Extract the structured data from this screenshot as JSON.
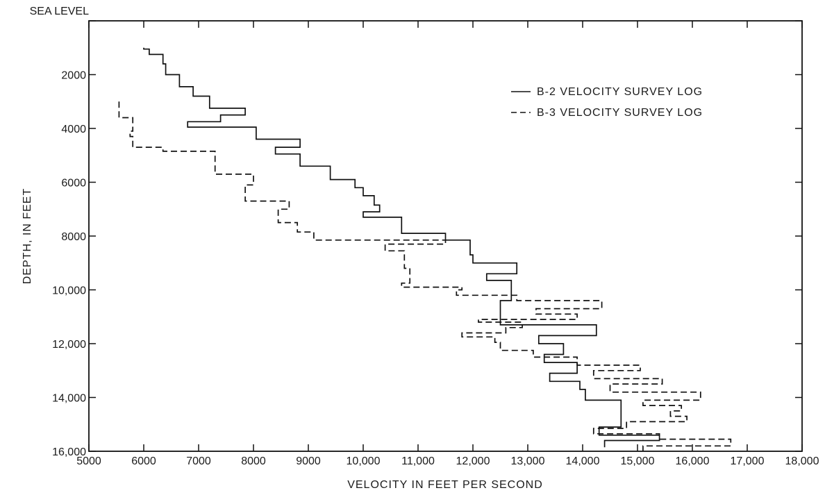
{
  "chart_data": {
    "type": "line",
    "title": "",
    "xlabel": "VELOCITY IN FEET PER SECOND",
    "ylabel": "DEPTH, IN FEET",
    "xlim": [
      5000,
      18000
    ],
    "ylim": [
      0,
      16000
    ],
    "y_inverted": true,
    "grid": false,
    "legend_position": "top-right",
    "x_ticks": [
      5000,
      6000,
      7000,
      8000,
      9000,
      10000,
      11000,
      12000,
      13000,
      14000,
      15000,
      16000,
      17000,
      18000
    ],
    "x_tick_labels": [
      "5000",
      "6000",
      "7000",
      "8000",
      "9000",
      "10,000",
      "11,000",
      "12,000",
      "13,000",
      "14,000",
      "15,000",
      "16,000",
      "17,000",
      "18,000"
    ],
    "y_ticks": [
      0,
      2000,
      4000,
      6000,
      8000,
      10000,
      12000,
      14000,
      16000
    ],
    "y_tick_labels": [
      "SEA LEVEL",
      "2000",
      "4000",
      "6000",
      "8000",
      "10,000",
      "12,000",
      "14,000",
      "16,000"
    ],
    "series": [
      {
        "name": "B-2 VELOCITY SURVEY LOG",
        "style": "solid",
        "color": "#111111",
        "points": [
          [
            6000,
            1000
          ],
          [
            6000,
            1050
          ],
          [
            6100,
            1050
          ],
          [
            6100,
            1250
          ],
          [
            6350,
            1250
          ],
          [
            6350,
            1600
          ],
          [
            6400,
            1600
          ],
          [
            6400,
            2000
          ],
          [
            6650,
            2000
          ],
          [
            6650,
            2450
          ],
          [
            6900,
            2450
          ],
          [
            6900,
            2800
          ],
          [
            7200,
            2800
          ],
          [
            7200,
            3250
          ],
          [
            7850,
            3250
          ],
          [
            7850,
            3500
          ],
          [
            7400,
            3500
          ],
          [
            7400,
            3750
          ],
          [
            6800,
            3750
          ],
          [
            6800,
            3950
          ],
          [
            8050,
            3950
          ],
          [
            8050,
            4400
          ],
          [
            8850,
            4400
          ],
          [
            8850,
            4700
          ],
          [
            8400,
            4700
          ],
          [
            8400,
            4950
          ],
          [
            8850,
            4950
          ],
          [
            8850,
            5400
          ],
          [
            9400,
            5400
          ],
          [
            9400,
            5900
          ],
          [
            9850,
            5900
          ],
          [
            9850,
            6200
          ],
          [
            10000,
            6200
          ],
          [
            10000,
            6500
          ],
          [
            10200,
            6500
          ],
          [
            10200,
            6850
          ],
          [
            10300,
            6850
          ],
          [
            10300,
            7100
          ],
          [
            10000,
            7100
          ],
          [
            10000,
            7300
          ],
          [
            10700,
            7300
          ],
          [
            10700,
            7900
          ],
          [
            11500,
            7900
          ],
          [
            11500,
            8150
          ],
          [
            11950,
            8150
          ],
          [
            11950,
            8700
          ],
          [
            12000,
            8700
          ],
          [
            12000,
            9000
          ],
          [
            12800,
            9000
          ],
          [
            12800,
            9400
          ],
          [
            12250,
            9400
          ],
          [
            12250,
            9650
          ],
          [
            12700,
            9650
          ],
          [
            12700,
            10400
          ],
          [
            12500,
            10400
          ],
          [
            12500,
            11300
          ],
          [
            14250,
            11300
          ],
          [
            14250,
            11700
          ],
          [
            13200,
            11700
          ],
          [
            13200,
            12000
          ],
          [
            13650,
            12000
          ],
          [
            13650,
            12400
          ],
          [
            13300,
            12400
          ],
          [
            13300,
            12700
          ],
          [
            13900,
            12700
          ],
          [
            13900,
            13100
          ],
          [
            13400,
            13100
          ],
          [
            13400,
            13400
          ],
          [
            13950,
            13400
          ],
          [
            13950,
            13700
          ],
          [
            14050,
            13700
          ],
          [
            14050,
            14100
          ],
          [
            14700,
            14100
          ],
          [
            14700,
            15100
          ],
          [
            14300,
            15100
          ],
          [
            14300,
            15400
          ],
          [
            15400,
            15400
          ],
          [
            15400,
            15600
          ],
          [
            14400,
            15600
          ],
          [
            14400,
            15850
          ]
        ]
      },
      {
        "name": "B-3 VELOCITY SURVEY LOG",
        "style": "dashed",
        "color": "#111111",
        "points": [
          [
            5550,
            3000
          ],
          [
            5550,
            3600
          ],
          [
            5800,
            3600
          ],
          [
            5800,
            4100
          ],
          [
            5750,
            4100
          ],
          [
            5750,
            4300
          ],
          [
            5800,
            4300
          ],
          [
            5800,
            4700
          ],
          [
            6350,
            4700
          ],
          [
            6350,
            4850
          ],
          [
            7300,
            4850
          ],
          [
            7300,
            5700
          ],
          [
            8000,
            5700
          ],
          [
            8000,
            6100
          ],
          [
            7850,
            6100
          ],
          [
            7850,
            6700
          ],
          [
            8650,
            6700
          ],
          [
            8650,
            7000
          ],
          [
            8450,
            7000
          ],
          [
            8450,
            7500
          ],
          [
            8800,
            7500
          ],
          [
            8800,
            7850
          ],
          [
            9100,
            7850
          ],
          [
            9100,
            8150
          ],
          [
            11500,
            8150
          ],
          [
            11500,
            8300
          ],
          [
            10400,
            8300
          ],
          [
            10400,
            8550
          ],
          [
            10750,
            8550
          ],
          [
            10750,
            9200
          ],
          [
            10850,
            9200
          ],
          [
            10850,
            9750
          ],
          [
            10700,
            9750
          ],
          [
            10700,
            9900
          ],
          [
            11800,
            9900
          ],
          [
            11800,
            10000
          ],
          [
            11700,
            10000
          ],
          [
            11700,
            10200
          ],
          [
            12800,
            10200
          ],
          [
            12800,
            10400
          ],
          [
            14350,
            10400
          ],
          [
            14350,
            10700
          ],
          [
            13150,
            10700
          ],
          [
            13150,
            10900
          ],
          [
            13900,
            10900
          ],
          [
            13900,
            11100
          ],
          [
            12100,
            11100
          ],
          [
            12100,
            11200
          ],
          [
            12900,
            11200
          ],
          [
            12900,
            11400
          ],
          [
            12600,
            11400
          ],
          [
            12600,
            11600
          ],
          [
            11800,
            11600
          ],
          [
            11800,
            11750
          ],
          [
            12400,
            11750
          ],
          [
            12400,
            11950
          ],
          [
            12500,
            11950
          ],
          [
            12500,
            12250
          ],
          [
            13100,
            12250
          ],
          [
            13100,
            12500
          ],
          [
            13900,
            12500
          ],
          [
            13900,
            12800
          ],
          [
            15050,
            12800
          ],
          [
            15050,
            13000
          ],
          [
            14200,
            13000
          ],
          [
            14200,
            13300
          ],
          [
            15450,
            13300
          ],
          [
            15450,
            13500
          ],
          [
            14500,
            13500
          ],
          [
            14500,
            13800
          ],
          [
            16150,
            13800
          ],
          [
            16150,
            14100
          ],
          [
            15100,
            14100
          ],
          [
            15100,
            14300
          ],
          [
            15800,
            14300
          ],
          [
            15800,
            14500
          ],
          [
            15600,
            14500
          ],
          [
            15600,
            14700
          ],
          [
            15900,
            14700
          ],
          [
            15900,
            14900
          ],
          [
            14800,
            14900
          ],
          [
            14800,
            15150
          ],
          [
            14200,
            15150
          ],
          [
            14200,
            15350
          ],
          [
            15400,
            15350
          ],
          [
            15400,
            15550
          ],
          [
            16700,
            15550
          ],
          [
            16700,
            15800
          ],
          [
            15100,
            15800
          ],
          [
            15100,
            16000
          ]
        ]
      }
    ]
  }
}
